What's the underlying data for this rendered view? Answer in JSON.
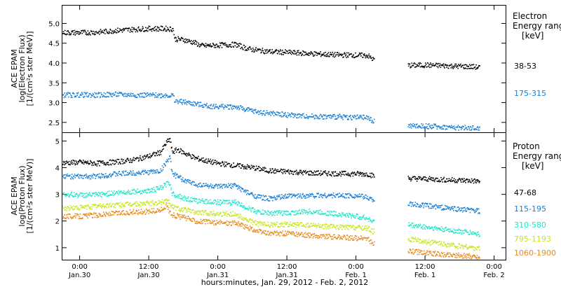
{
  "chart_data": [
    {
      "type": "scatter",
      "panel": "electron",
      "ylabel_lines": [
        "ACE EPAM",
        "log(Electron Flux)",
        "[1/(cm²s ster MeV)]"
      ],
      "ylim": [
        2.25,
        5.45
      ],
      "yticks": [
        2.5,
        3.0,
        3.5,
        4.0,
        4.5,
        5.0
      ],
      "ytick_labels": [
        "2.5",
        "3.0",
        "3.5",
        "4.0",
        "4.5",
        "5.0"
      ],
      "legend": {
        "title_lines": [
          "Electron",
          "Energy ranges",
          "[keV]"
        ],
        "placement": "right"
      },
      "series": [
        {
          "name": "38-53",
          "color": "#000000",
          "points": [
            [
              -3,
              4.78
            ],
            [
              0,
              4.78
            ],
            [
              3,
              4.79
            ],
            [
              6,
              4.83
            ],
            [
              9,
              4.86
            ],
            [
              12,
              4.88
            ],
            [
              15,
              4.88
            ],
            [
              16.2,
              4.87
            ],
            [
              16.4,
              4.62
            ],
            [
              18,
              4.6
            ],
            [
              20,
              4.52
            ],
            [
              21,
              4.45
            ],
            [
              22,
              4.45
            ],
            [
              24,
              4.46
            ],
            [
              27,
              4.48
            ],
            [
              29,
              4.38
            ],
            [
              30,
              4.35
            ],
            [
              33,
              4.3
            ],
            [
              36,
              4.28
            ],
            [
              40,
              4.25
            ],
            [
              44,
              4.22
            ],
            [
              48,
              4.21
            ],
            [
              50,
              4.2
            ],
            [
              50.9,
              4.1
            ],
            [
              51.2,
              4.12
            ],
            [
              57,
              3.95
            ],
            [
              60,
              3.96
            ],
            [
              64,
              3.94
            ],
            [
              68,
              3.92
            ],
            [
              69.5,
              3.9
            ]
          ]
        },
        {
          "name": "175-315",
          "color": "#1a7fd4",
          "points": [
            [
              -3,
              3.2
            ],
            [
              0,
              3.21
            ],
            [
              3,
              3.2
            ],
            [
              6,
              3.22
            ],
            [
              9,
              3.21
            ],
            [
              12,
              3.2
            ],
            [
              15,
              3.2
            ],
            [
              16.2,
              3.19
            ],
            [
              16.4,
              3.05
            ],
            [
              18,
              3.03
            ],
            [
              20,
              2.98
            ],
            [
              22,
              2.93
            ],
            [
              24,
              2.91
            ],
            [
              27,
              2.91
            ],
            [
              29,
              2.83
            ],
            [
              31,
              2.77
            ],
            [
              34,
              2.73
            ],
            [
              38,
              2.68
            ],
            [
              42,
              2.66
            ],
            [
              46,
              2.65
            ],
            [
              50,
              2.63
            ],
            [
              50.9,
              2.55
            ],
            [
              51.2,
              2.56
            ],
            [
              57,
              2.42
            ],
            [
              60,
              2.42
            ],
            [
              64,
              2.39
            ],
            [
              68,
              2.37
            ],
            [
              69.5,
              2.36
            ]
          ]
        }
      ]
    },
    {
      "type": "scatter",
      "panel": "proton",
      "ylabel_lines": [
        "ACE EPAM",
        "log(Proton Flux)",
        "[1/(cm²s ster MeV)]"
      ],
      "ylim": [
        0.55,
        5.3
      ],
      "yticks": [
        1,
        2,
        3,
        4,
        5
      ],
      "ytick_labels": [
        "1",
        "2",
        "3",
        "4",
        "5"
      ],
      "xlim": [
        -3,
        74
      ],
      "xticks": [
        0,
        12,
        24,
        36,
        48,
        60,
        72
      ],
      "xtick_time_labels": [
        "0:00",
        "12:00",
        "0:00",
        "12:00",
        "0:00",
        "12:00",
        "0:00"
      ],
      "xtick_date_labels": [
        "Jan.30",
        "Jan.30",
        "Jan.31",
        "Jan.31",
        "Feb. 1",
        "Feb. 1",
        "Feb. 2"
      ],
      "xlabel": "hours:minutes, Jan. 29, 2012 - Feb. 2, 2012",
      "legend": {
        "title_lines": [
          "Proton",
          "Energy ranges",
          "[keV]"
        ],
        "placement": "right"
      },
      "series": [
        {
          "name": "47-68",
          "color": "#000000",
          "points": [
            [
              -3,
              4.2
            ],
            [
              0,
              4.22
            ],
            [
              3,
              4.18
            ],
            [
              6,
              4.23
            ],
            [
              9,
              4.3
            ],
            [
              12,
              4.45
            ],
            [
              14,
              4.6
            ],
            [
              15,
              4.95
            ],
            [
              15.6,
              5.1
            ],
            [
              16,
              4.6
            ],
            [
              17,
              4.7
            ],
            [
              18,
              4.58
            ],
            [
              20,
              4.38
            ],
            [
              22,
              4.27
            ],
            [
              24,
              4.18
            ],
            [
              27,
              4.1
            ],
            [
              30,
              4.02
            ],
            [
              33,
              3.9
            ],
            [
              36,
              3.87
            ],
            [
              40,
              3.82
            ],
            [
              44,
              3.8
            ],
            [
              48,
              3.79
            ],
            [
              50,
              3.78
            ],
            [
              50.9,
              3.72
            ],
            [
              51.2,
              3.74
            ],
            [
              57,
              3.62
            ],
            [
              60,
              3.6
            ],
            [
              64,
              3.56
            ],
            [
              68,
              3.53
            ],
            [
              69.5,
              3.5
            ]
          ]
        },
        {
          "name": "115-195",
          "color": "#1a7fd4",
          "points": [
            [
              -3,
              3.7
            ],
            [
              0,
              3.68
            ],
            [
              3,
              3.7
            ],
            [
              6,
              3.78
            ],
            [
              9,
              3.82
            ],
            [
              12,
              3.85
            ],
            [
              14,
              3.9
            ],
            [
              15,
              4.25
            ],
            [
              15.6,
              4.4
            ],
            [
              16,
              3.8
            ],
            [
              18,
              3.55
            ],
            [
              20,
              3.4
            ],
            [
              24,
              3.3
            ],
            [
              27,
              3.35
            ],
            [
              29,
              3.08
            ],
            [
              31,
              2.92
            ],
            [
              33,
              2.85
            ],
            [
              36,
              2.95
            ],
            [
              40,
              2.98
            ],
            [
              44,
              2.98
            ],
            [
              48,
              2.97
            ],
            [
              50,
              2.9
            ],
            [
              50.9,
              2.82
            ],
            [
              51.2,
              2.85
            ],
            [
              57,
              2.65
            ],
            [
              60,
              2.6
            ],
            [
              64,
              2.5
            ],
            [
              68,
              2.42
            ],
            [
              69.5,
              2.38
            ]
          ]
        },
        {
          "name": "310-580",
          "color": "#1ae8c8",
          "points": [
            [
              -3,
              3.02
            ],
            [
              0,
              3.0
            ],
            [
              3,
              3.0
            ],
            [
              6,
              3.08
            ],
            [
              9,
              3.12
            ],
            [
              12,
              3.15
            ],
            [
              14,
              3.25
            ],
            [
              15,
              3.4
            ],
            [
              15.6,
              3.45
            ],
            [
              16,
              3.05
            ],
            [
              18,
              2.88
            ],
            [
              20,
              2.78
            ],
            [
              24,
              2.72
            ],
            [
              27,
              2.72
            ],
            [
              29,
              2.52
            ],
            [
              31,
              2.35
            ],
            [
              33,
              2.32
            ],
            [
              36,
              2.32
            ],
            [
              40,
              2.38
            ],
            [
              44,
              2.3
            ],
            [
              48,
              2.2
            ],
            [
              50,
              2.12
            ],
            [
              50.9,
              2.0
            ],
            [
              51.2,
              2.02
            ],
            [
              57,
              1.88
            ],
            [
              60,
              1.8
            ],
            [
              64,
              1.68
            ],
            [
              68,
              1.58
            ],
            [
              69.5,
              1.52
            ]
          ]
        },
        {
          "name": "795-1193",
          "color": "#c8e61a",
          "points": [
            [
              -3,
              2.5
            ],
            [
              0,
              2.52
            ],
            [
              3,
              2.58
            ],
            [
              6,
              2.62
            ],
            [
              9,
              2.65
            ],
            [
              12,
              2.68
            ],
            [
              14,
              2.7
            ],
            [
              15,
              2.85
            ],
            [
              15.6,
              2.7
            ],
            [
              16,
              2.55
            ],
            [
              18,
              2.45
            ],
            [
              20,
              2.35
            ],
            [
              24,
              2.3
            ],
            [
              27,
              2.28
            ],
            [
              29,
              2.05
            ],
            [
              31,
              1.92
            ],
            [
              33,
              1.88
            ],
            [
              36,
              1.9
            ],
            [
              40,
              1.85
            ],
            [
              44,
              1.8
            ],
            [
              48,
              1.78
            ],
            [
              50,
              1.75
            ],
            [
              50.9,
              1.62
            ],
            [
              51.2,
              1.65
            ],
            [
              57,
              1.35
            ],
            [
              60,
              1.25
            ],
            [
              64,
              1.12
            ],
            [
              68,
              1.02
            ],
            [
              69.5,
              0.98
            ]
          ]
        },
        {
          "name": "1060-1900",
          "color": "#e88a1a",
          "points": [
            [
              -3,
              2.2
            ],
            [
              0,
              2.2
            ],
            [
              3,
              2.25
            ],
            [
              6,
              2.3
            ],
            [
              9,
              2.35
            ],
            [
              12,
              2.38
            ],
            [
              14,
              2.42
            ],
            [
              15,
              2.6
            ],
            [
              15.6,
              2.35
            ],
            [
              16,
              2.25
            ],
            [
              18,
              2.15
            ],
            [
              20,
              2.02
            ],
            [
              24,
              1.95
            ],
            [
              27,
              1.95
            ],
            [
              29,
              1.78
            ],
            [
              31,
              1.62
            ],
            [
              33,
              1.55
            ],
            [
              36,
              1.55
            ],
            [
              40,
              1.48
            ],
            [
              44,
              1.42
            ],
            [
              48,
              1.38
            ],
            [
              50,
              1.35
            ],
            [
              50.9,
              1.15
            ],
            [
              51.2,
              1.18
            ],
            [
              57,
              0.9
            ],
            [
              60,
              0.82
            ],
            [
              64,
              0.75
            ],
            [
              68,
              0.7
            ],
            [
              69.5,
              0.65
            ]
          ]
        }
      ]
    }
  ]
}
